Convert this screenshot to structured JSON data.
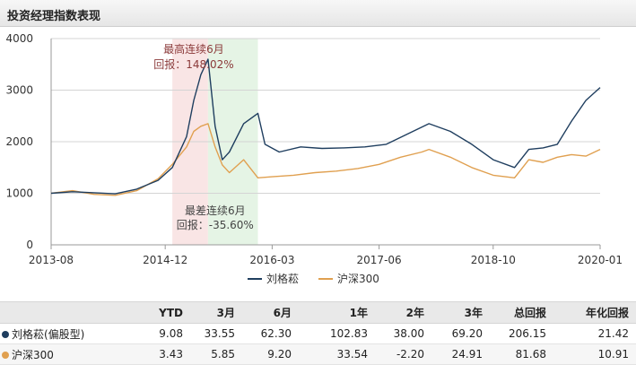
{
  "header": {
    "title": "投资经理指数表现"
  },
  "chart_data": {
    "type": "line",
    "x_ticks": [
      "2013-08",
      "2014-12",
      "2016-03",
      "2017-06",
      "2018-10",
      "2020-01"
    ],
    "y_ticks": [
      0,
      1000,
      2000,
      3000,
      4000
    ],
    "ylim": [
      0,
      4000
    ],
    "xlim": [
      "2013-08",
      "2020-01"
    ],
    "grid": true,
    "legend_position": "bottom",
    "series": [
      {
        "name": "刘格菘",
        "color": "#1f3e5f",
        "points": [
          [
            "2013-08",
            1000
          ],
          [
            "2013-11",
            1030
          ],
          [
            "2014-02",
            1010
          ],
          [
            "2014-05",
            990
          ],
          [
            "2014-08",
            1080
          ],
          [
            "2014-11",
            1250
          ],
          [
            "2015-01",
            1500
          ],
          [
            "2015-03",
            2100
          ],
          [
            "2015-04",
            2800
          ],
          [
            "2015-05",
            3300
          ],
          [
            "2015-06",
            3600
          ],
          [
            "2015-07",
            2300
          ],
          [
            "2015-08",
            1650
          ],
          [
            "2015-09",
            1800
          ],
          [
            "2015-11",
            2350
          ],
          [
            "2016-01",
            2550
          ],
          [
            "2016-02",
            1950
          ],
          [
            "2016-04",
            1800
          ],
          [
            "2016-07",
            1900
          ],
          [
            "2016-10",
            1870
          ],
          [
            "2017-01",
            1880
          ],
          [
            "2017-04",
            1900
          ],
          [
            "2017-07",
            1950
          ],
          [
            "2017-10",
            2150
          ],
          [
            "2018-01",
            2350
          ],
          [
            "2018-04",
            2200
          ],
          [
            "2018-07",
            1950
          ],
          [
            "2018-10",
            1650
          ],
          [
            "2019-01",
            1500
          ],
          [
            "2019-03",
            1850
          ],
          [
            "2019-05",
            1880
          ],
          [
            "2019-07",
            1950
          ],
          [
            "2019-09",
            2400
          ],
          [
            "2019-11",
            2800
          ],
          [
            "2020-01",
            3050
          ]
        ]
      },
      {
        "name": "沪深300",
        "color": "#e0a050",
        "points": [
          [
            "2013-08",
            1000
          ],
          [
            "2013-11",
            1050
          ],
          [
            "2014-02",
            980
          ],
          [
            "2014-05",
            960
          ],
          [
            "2014-08",
            1050
          ],
          [
            "2014-11",
            1280
          ],
          [
            "2015-01",
            1560
          ],
          [
            "2015-03",
            1900
          ],
          [
            "2015-04",
            2200
          ],
          [
            "2015-05",
            2300
          ],
          [
            "2015-06",
            2350
          ],
          [
            "2015-07",
            1900
          ],
          [
            "2015-08",
            1550
          ],
          [
            "2015-09",
            1400
          ],
          [
            "2015-11",
            1650
          ],
          [
            "2016-01",
            1300
          ],
          [
            "2016-03",
            1320
          ],
          [
            "2016-06",
            1350
          ],
          [
            "2016-09",
            1400
          ],
          [
            "2016-12",
            1430
          ],
          [
            "2017-03",
            1480
          ],
          [
            "2017-06",
            1560
          ],
          [
            "2017-09",
            1700
          ],
          [
            "2017-12",
            1800
          ],
          [
            "2018-01",
            1850
          ],
          [
            "2018-04",
            1700
          ],
          [
            "2018-07",
            1500
          ],
          [
            "2018-10",
            1350
          ],
          [
            "2019-01",
            1300
          ],
          [
            "2019-03",
            1650
          ],
          [
            "2019-05",
            1600
          ],
          [
            "2019-07",
            1700
          ],
          [
            "2019-09",
            1750
          ],
          [
            "2019-11",
            1720
          ],
          [
            "2020-01",
            1850
          ]
        ]
      }
    ],
    "highlight_bands": [
      {
        "start": "2015-01",
        "end": "2015-06",
        "color": "#f8dede"
      },
      {
        "start": "2015-06",
        "end": "2016-01",
        "color": "#dff1df"
      }
    ],
    "annotations": [
      {
        "line1": "最高连续6月",
        "line2": "回报：148.02%",
        "color": "#8b3a3a"
      },
      {
        "line1": "最差连续6月",
        "line2": "回报：-35.60%",
        "color": "#444444"
      }
    ]
  },
  "table": {
    "headers": [
      "",
      "YTD",
      "3月",
      "6月",
      "1年",
      "2年",
      "3年",
      "总回报",
      "年化回报"
    ],
    "rows": [
      {
        "name": "刘格菘(偏股型)",
        "dot_color": "#1f3e5f",
        "values": [
          "9.08",
          "33.55",
          "62.30",
          "102.83",
          "38.00",
          "69.20",
          "206.15",
          "21.42"
        ]
      },
      {
        "name": "沪深300",
        "dot_color": "#e0a050",
        "values": [
          "3.43",
          "5.85",
          "9.20",
          "33.54",
          "-2.20",
          "24.91",
          "81.68",
          "10.91"
        ]
      }
    ]
  }
}
